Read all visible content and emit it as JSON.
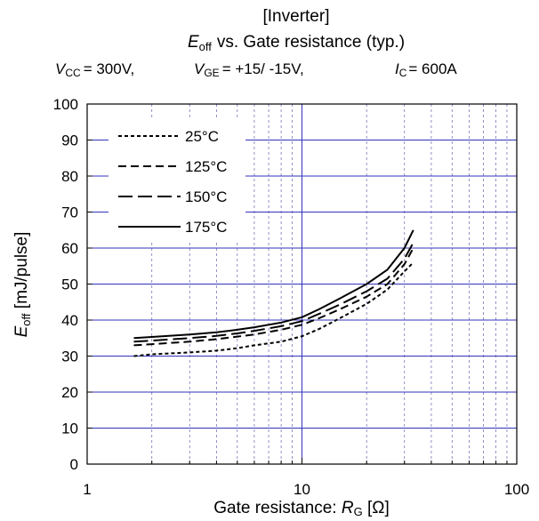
{
  "chart_data": {
    "type": "line",
    "title_line1": "[Inverter]",
    "title_main": "vs. Gate resistance  (typ.)",
    "title_symbol": {
      "base": "E",
      "sub": "off"
    },
    "conditions": [
      {
        "base": "V",
        "sub": "CC",
        "value": "= 300V,"
      },
      {
        "base": "V",
        "sub": "GE",
        "value": "= +15/ -15V,"
      },
      {
        "base": "I",
        "sub": "C",
        "value": "= 600A"
      }
    ],
    "ylabel": {
      "base": "E",
      "sub": "off",
      "rest": " [mJ/pulse]"
    },
    "xlabel": {
      "prefix": "Gate resistance: ",
      "base": "R",
      "sub": "G",
      "suffix": " [Ω]"
    },
    "x_scale": "log",
    "xlim": [
      1,
      100
    ],
    "ylim": [
      0,
      100
    ],
    "x_ticks": [
      "1",
      "10",
      "100"
    ],
    "y_ticks": [
      "0",
      "10",
      "20",
      "30",
      "40",
      "50",
      "60",
      "70",
      "80",
      "90",
      "100"
    ],
    "grid": true,
    "grid_color": "#3333bb",
    "minor_grid_color": "#7777bb",
    "legend_position": "top-left",
    "series": [
      {
        "name": "25°C",
        "dash": "4,3",
        "x": [
          1.65,
          2,
          3,
          4,
          5,
          6,
          8,
          10,
          12,
          15,
          20,
          25,
          30,
          33
        ],
        "y": [
          30,
          30.5,
          31,
          31.5,
          32.2,
          33,
          34,
          35.5,
          37.5,
          40.5,
          44.5,
          48.5,
          53.5,
          56
        ]
      },
      {
        "name": "125°C",
        "dash": "9,5",
        "x": [
          1.65,
          2,
          3,
          4,
          5,
          6,
          8,
          10,
          12,
          15,
          20,
          25,
          30,
          33
        ],
        "y": [
          33,
          33.3,
          34,
          34.7,
          35.4,
          36,
          37.3,
          38.7,
          40.5,
          43,
          46.5,
          50,
          55.5,
          60
        ]
      },
      {
        "name": "150°C",
        "dash": "16,6",
        "x": [
          1.65,
          2,
          3,
          4,
          5,
          6,
          8,
          10,
          12,
          15,
          20,
          25,
          30,
          33
        ],
        "y": [
          34,
          34.3,
          35,
          35.6,
          36.3,
          37,
          38.3,
          39.7,
          41.7,
          44.3,
          48,
          51.5,
          57,
          61.5
        ]
      },
      {
        "name": "175°C",
        "dash": "",
        "x": [
          1.65,
          2,
          3,
          4,
          5,
          6,
          8,
          10,
          12,
          15,
          20,
          25,
          30,
          33
        ],
        "y": [
          35,
          35.3,
          36,
          36.6,
          37.3,
          38,
          39.3,
          40.8,
          43,
          46,
          50,
          54,
          60,
          65
        ]
      }
    ]
  }
}
